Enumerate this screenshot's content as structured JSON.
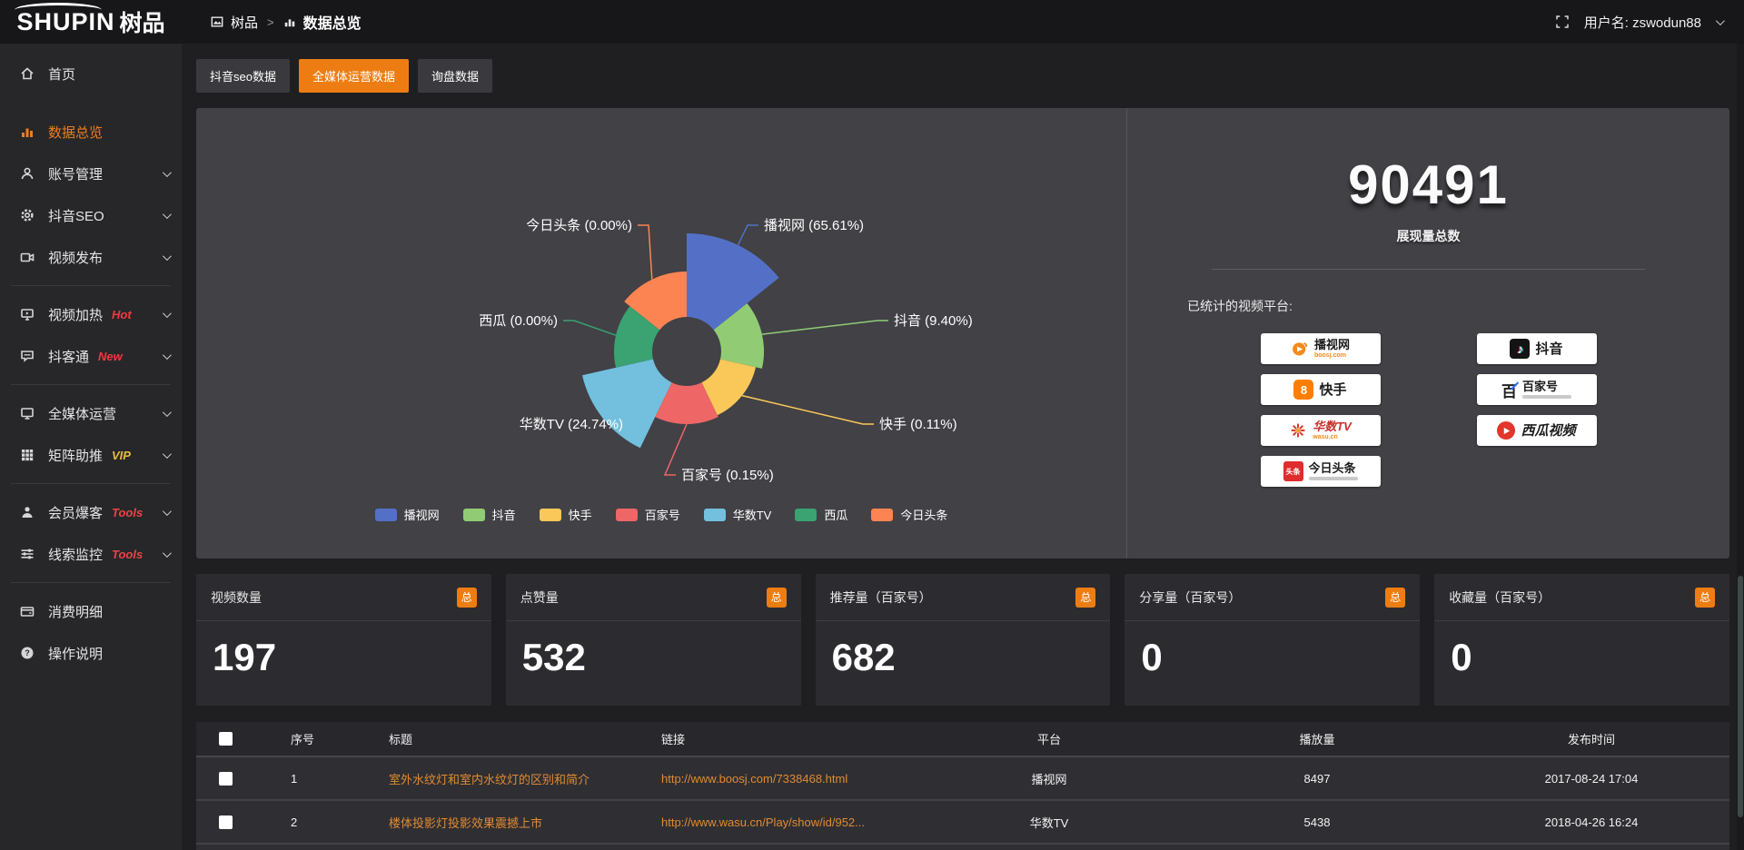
{
  "topbar": {
    "logo_en": "SHUPIN",
    "logo_cn": "树品",
    "breadcrumb": [
      "树品",
      "数据总览"
    ],
    "breadcrumb_sep": ">",
    "username": "用户名: zswodun88"
  },
  "sidebar": {
    "items": [
      {
        "label": "首页"
      },
      {
        "label": "数据总览",
        "active": true
      },
      {
        "label": "账号管理"
      },
      {
        "label": "抖音SEO"
      },
      {
        "label": "视频发布"
      },
      {
        "label": "视频加热",
        "tag": "Hot",
        "tag_color": "#f3383f"
      },
      {
        "label": "抖客通",
        "tag": "New",
        "tag_color": "#f3383f"
      },
      {
        "label": "全媒体运营"
      },
      {
        "label": "矩阵助推",
        "tag": "VIP",
        "tag_color": "#e9bd3a"
      },
      {
        "label": "会员爆客",
        "tag": "Tools",
        "tag_color": "#e84545"
      },
      {
        "label": "线索监控",
        "tag": "Tools",
        "tag_color": "#e84545"
      },
      {
        "label": "消费明细"
      },
      {
        "label": "操作说明"
      }
    ]
  },
  "tabs": [
    {
      "label": "抖音seo数据",
      "active": false
    },
    {
      "label": "全媒体运营数据",
      "active": true
    },
    {
      "label": "询盘数据",
      "active": false
    }
  ],
  "chart_data": {
    "type": "pie",
    "variant": "nightingale-rose",
    "title": "",
    "legend_position": "bottom",
    "series": [
      {
        "name": "播视网",
        "percent": 65.61,
        "label": "播视网 (65.61%)",
        "color": "#5470c6",
        "radius": 130
      },
      {
        "name": "抖音",
        "percent": 9.4,
        "label": "抖音 (9.40%)",
        "color": "#91cc75",
        "radius": 85
      },
      {
        "name": "快手",
        "percent": 0.11,
        "label": "快手 (0.11%)",
        "color": "#fac858",
        "radius": 78
      },
      {
        "name": "百家号",
        "percent": 0.15,
        "label": "百家号 (0.15%)",
        "color": "#ee6666",
        "radius": 80
      },
      {
        "name": "华数TV",
        "percent": 24.74,
        "label": "华数TV (24.74%)",
        "color": "#73c0de",
        "radius": 118
      },
      {
        "name": "西瓜",
        "percent": 0.0,
        "label": "西瓜 (0.00%)",
        "color": "#3ba272",
        "radius": 80
      },
      {
        "name": "今日头条",
        "percent": 0.0,
        "label": "今日头条 (0.00%)",
        "color": "#fc8452",
        "radius": 88
      }
    ],
    "legend": [
      "播视网",
      "抖音",
      "快手",
      "百家号",
      "华数TV",
      "西瓜",
      "今日头条"
    ]
  },
  "summary": {
    "total_value": "90491",
    "total_label": "展现量总数",
    "platforms_label": "已统计的视频平台:",
    "platforms": [
      {
        "name": "播视网",
        "sub": "boosj.com"
      },
      {
        "name": "抖音",
        "sub": ""
      },
      {
        "name": "快手",
        "sub": ""
      },
      {
        "name": "百家号",
        "sub": ""
      },
      {
        "name": "华数TV",
        "sub": "wasu.cn"
      },
      {
        "name": "西瓜视频",
        "sub": ""
      },
      {
        "name": "今日头条",
        "sub": ""
      }
    ]
  },
  "stat_cards": [
    {
      "title": "视频数量",
      "badge": "总",
      "value": "197"
    },
    {
      "title": "点赞量",
      "badge": "总",
      "value": "532"
    },
    {
      "title": "推荐量（百家号）",
      "badge": "总",
      "value": "682"
    },
    {
      "title": "分享量（百家号）",
      "badge": "总",
      "value": "0"
    },
    {
      "title": "收藏量（百家号）",
      "badge": "总",
      "value": "0"
    }
  ],
  "table": {
    "headers": [
      "序号",
      "标题",
      "链接",
      "平台",
      "播放量",
      "发布时间"
    ],
    "rows": [
      {
        "no": "1",
        "title": "室外水纹灯和室内水纹灯的区别和简介",
        "link": "http://www.boosj.com/7338468.html",
        "platform": "播视网",
        "plays": "8497",
        "time": "2017-08-24 17:04"
      },
      {
        "no": "2",
        "title": "楼体投影灯投影效果震撼上市",
        "link": "http://www.wasu.cn/Play/show/id/952...",
        "platform": "华数TV",
        "plays": "5438",
        "time": "2018-04-26 16:24"
      }
    ]
  },
  "colors": {
    "accent": "#ed7d12",
    "link": "#e08a33",
    "panel": "#414146",
    "page": "#1f1f22"
  }
}
